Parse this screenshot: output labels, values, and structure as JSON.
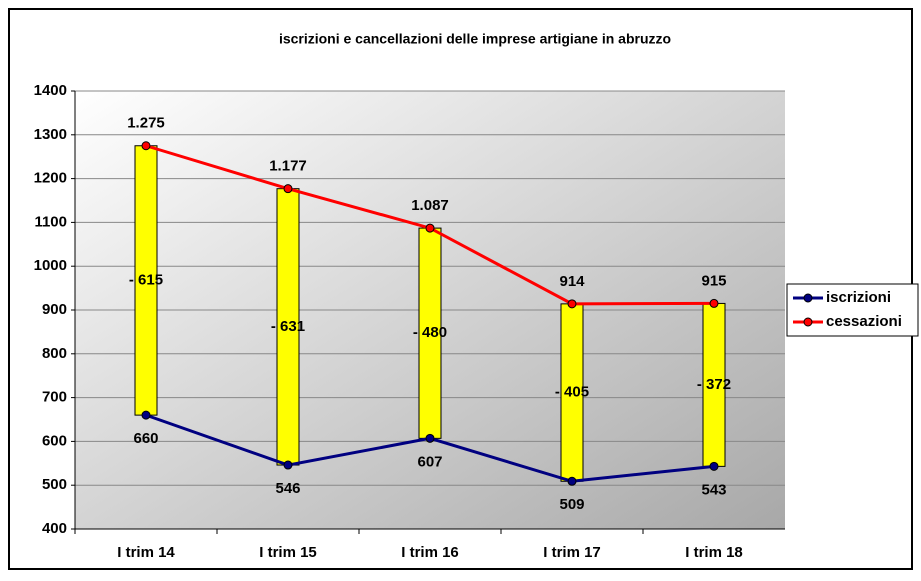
{
  "chart_data": {
    "type": "line",
    "title": "iscrizioni e cancellazioni delle imprese artigiane in abruzzo",
    "categories": [
      "I trim 14",
      "I trim 15",
      "I trim 16",
      "I trim 17",
      "I trim 18"
    ],
    "series": [
      {
        "name": "iscrizioni",
        "color": "#000080",
        "values": [
          660,
          546,
          607,
          509,
          543
        ]
      },
      {
        "name": "cessazioni",
        "color": "#ff0000",
        "values": [
          1275,
          1177,
          1087,
          914,
          915
        ],
        "value_labels": [
          "1.275",
          "1.177",
          "1.087",
          "914",
          "915"
        ]
      }
    ],
    "difference_labels": [
      "- 615",
      "- 631",
      "- 480",
      "- 405",
      "- 372"
    ],
    "difference_color": "#ffff00",
    "ylim": [
      400,
      1400
    ],
    "yticks": [
      400,
      500,
      600,
      700,
      800,
      900,
      1000,
      1100,
      1200,
      1300,
      1400
    ],
    "grid": true,
    "legend": "right"
  }
}
